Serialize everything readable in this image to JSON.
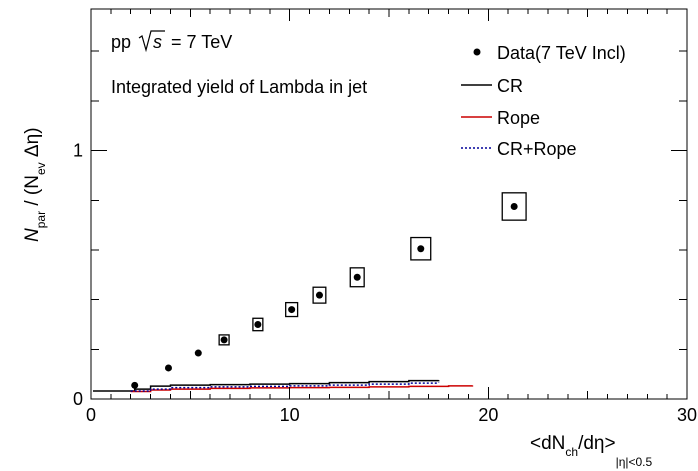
{
  "chart_data": {
    "type": "scatter",
    "annotations": {
      "energy": {
        "prefix": "pp",
        "sqrt_arg": "s",
        "suffix": "= 7 TeV"
      },
      "description": "Integrated yield of Lambda in jet"
    },
    "axes": {
      "x": {
        "label": {
          "open": "<dN",
          "sub1": "ch",
          "mid": "/dη>",
          "sub2": "|η|<0.5"
        },
        "range": [
          0,
          30
        ],
        "major_ticks": [
          0,
          10,
          20,
          30
        ],
        "tick_labels": [
          "0",
          "10",
          "20",
          "30"
        ]
      },
      "y": {
        "label": {
          "N": "N",
          "sub1": "par",
          "mid": " / (N",
          "sub2": "ev",
          "end": " Δη)"
        },
        "range": [
          0,
          1.57
        ],
        "major_ticks": [
          0,
          1
        ],
        "tick_labels": [
          "0",
          "1"
        ],
        "minor_ticks": [
          0.2,
          0.4,
          0.6,
          0.8,
          1.2,
          1.4
        ]
      }
    },
    "legend": {
      "placement": "top-right",
      "entries": [
        {
          "name": "Data(7 TeV Incl)",
          "style": "marker",
          "color": "#000000"
        },
        {
          "name": "CR",
          "style": "line",
          "color": "#000000"
        },
        {
          "name": "Rope",
          "style": "line",
          "color": "#cc0000"
        },
        {
          "name": "CR+Rope",
          "style": "dotted",
          "color": "#000099"
        }
      ]
    },
    "series": [
      {
        "name": "Data(7 TeV Incl)",
        "type": "scatter",
        "color": "#000000",
        "x": [
          2.2,
          3.9,
          5.4,
          6.7,
          8.4,
          10.1,
          11.5,
          13.4,
          16.6,
          21.3
        ],
        "y": [
          0.055,
          0.125,
          0.185,
          0.238,
          0.3,
          0.36,
          0.418,
          0.49,
          0.605,
          0.775
        ],
        "syst_box_dx": [
          0,
          0,
          0,
          0.25,
          0.25,
          0.3,
          0.32,
          0.35,
          0.5,
          0.6
        ],
        "syst_box_dy": [
          0,
          0,
          0,
          0.02,
          0.025,
          0.028,
          0.032,
          0.038,
          0.045,
          0.055
        ]
      },
      {
        "name": "CR",
        "type": "line",
        "color": "#000000",
        "x": [
          0.1,
          2.2,
          3.0,
          4.0,
          6.0,
          8.0,
          10.0,
          12.0,
          14.0,
          16.0,
          17.5
        ],
        "y": [
          0.032,
          0.04,
          0.052,
          0.056,
          0.058,
          0.06,
          0.062,
          0.066,
          0.07,
          0.074,
          0.076
        ]
      },
      {
        "name": "Rope",
        "type": "line",
        "color": "#cc0000",
        "x": [
          2.0,
          3.0,
          4.0,
          6.0,
          8.0,
          10.0,
          12.0,
          14.0,
          16.0,
          18.0,
          19.2
        ],
        "y": [
          0.03,
          0.036,
          0.04,
          0.043,
          0.045,
          0.046,
          0.047,
          0.049,
          0.051,
          0.053,
          0.055
        ]
      },
      {
        "name": "CR+Rope",
        "type": "dotted",
        "color": "#000099",
        "x": [
          2.0,
          3.0,
          4.0,
          6.0,
          8.0,
          10.0,
          12.0,
          14.0,
          16.0,
          17.5
        ],
        "y": [
          0.032,
          0.04,
          0.046,
          0.049,
          0.051,
          0.053,
          0.056,
          0.06,
          0.064,
          0.066
        ]
      }
    ]
  }
}
